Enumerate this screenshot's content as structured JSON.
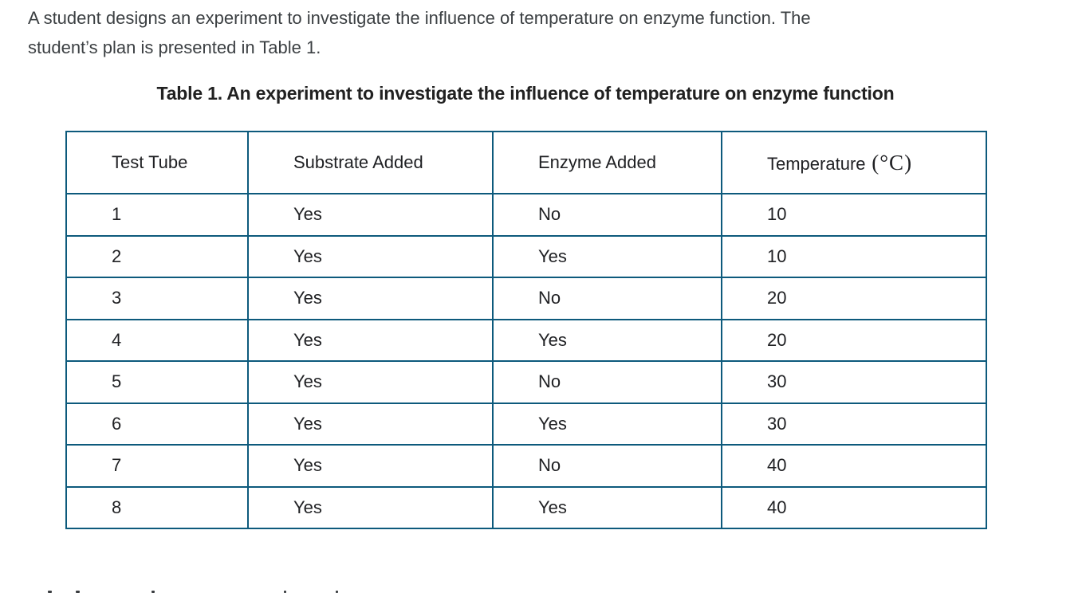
{
  "colors": {
    "border": "#0d5a7c",
    "body_text": "#3c4043",
    "cell_text": "#202124",
    "title_text": "#212121",
    "background": "#ffffff"
  },
  "intro": {
    "lines": [
      "A student designs an experiment to investigate the influence of temperature on enzyme function. The",
      "student’s plan is presented in Table 1."
    ]
  },
  "table": {
    "title": "Table 1. An experiment to investigate the influence of temperature on enzyme function",
    "headers": [
      {
        "label": "Test Tube"
      },
      {
        "label": "Substrate Added"
      },
      {
        "label": "Enzyme Added"
      },
      {
        "label": "Temperature",
        "unit": "(°C)"
      }
    ],
    "rows": [
      [
        "1",
        "Yes",
        "No",
        "10"
      ],
      [
        "2",
        "Yes",
        "Yes",
        "10"
      ],
      [
        "3",
        "Yes",
        "No",
        "20"
      ],
      [
        "4",
        "Yes",
        "Yes",
        "20"
      ],
      [
        "5",
        "Yes",
        "No",
        "30"
      ],
      [
        "6",
        "Yes",
        "Yes",
        "30"
      ],
      [
        "7",
        "Yes",
        "No",
        "40"
      ],
      [
        "8",
        "Yes",
        "Yes",
        "40"
      ]
    ]
  }
}
